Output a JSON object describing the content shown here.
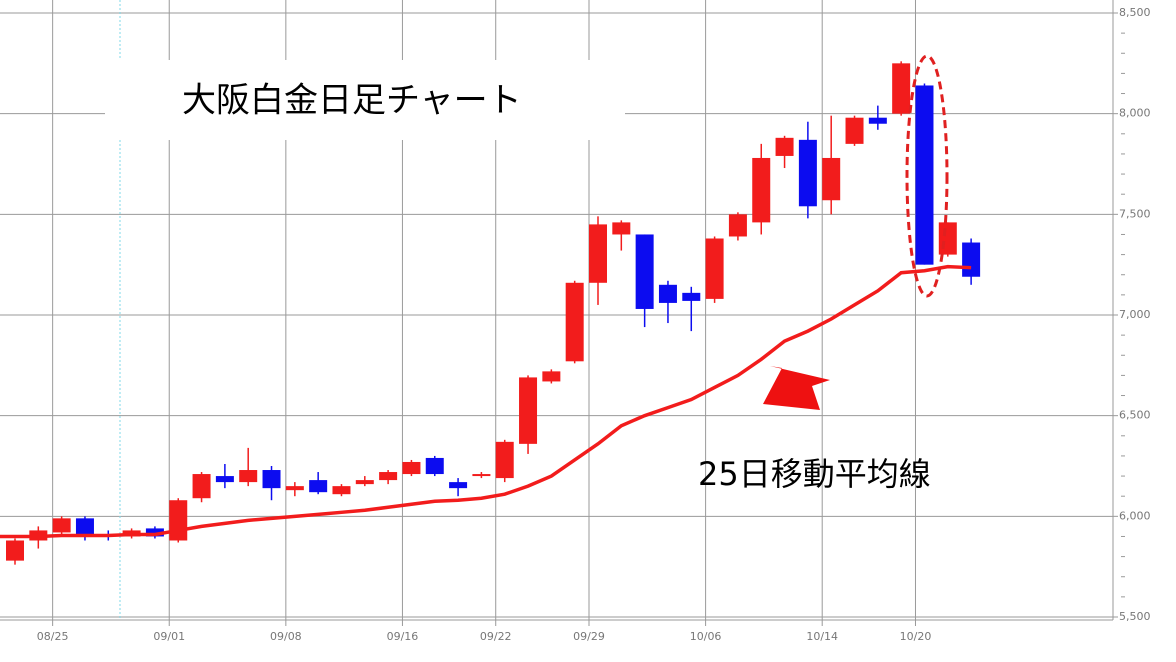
{
  "chart_data": {
    "type": "candlestick",
    "title": "大阪白金日足チャート",
    "categories": [
      null,
      null,
      "08/25",
      null,
      null,
      null,
      null,
      "09/01",
      null,
      null,
      null,
      null,
      "09/08",
      null,
      null,
      null,
      null,
      "09/16",
      null,
      null,
      null,
      "09/22",
      null,
      null,
      null,
      "09/29",
      null,
      null,
      null,
      null,
      "10/06",
      null,
      null,
      null,
      null,
      "10/14",
      null,
      null,
      null,
      "10/20",
      null,
      null
    ],
    "open": [
      5780,
      5880,
      5920,
      5990,
      5910,
      5900,
      5940,
      5880,
      6090,
      6200,
      6170,
      6230,
      6130,
      6180,
      6110,
      6160,
      6180,
      6210,
      6290,
      6170,
      6200,
      6190,
      6360,
      6670,
      6770,
      7160,
      7400,
      7400,
      7150,
      7110,
      7080,
      7390,
      7460,
      7790,
      7870,
      7570,
      7850,
      7980,
      8000,
      8140,
      7300,
      7360
    ],
    "high": [
      5890,
      5950,
      6000,
      6000,
      5930,
      5940,
      5950,
      6090,
      6220,
      6260,
      6340,
      6250,
      6170,
      6220,
      6160,
      6200,
      6230,
      6280,
      6300,
      6190,
      6220,
      6380,
      6700,
      6730,
      7170,
      7490,
      7470,
      7400,
      7170,
      7140,
      7390,
      7510,
      7850,
      7890,
      7960,
      7990,
      7990,
      8040,
      8260,
      8150,
      7460,
      7380
    ],
    "low": [
      5760,
      5840,
      5900,
      5880,
      5880,
      5890,
      5890,
      5870,
      6070,
      6140,
      6150,
      6080,
      6100,
      6110,
      6100,
      6150,
      6160,
      6200,
      6200,
      6100,
      6190,
      6170,
      6310,
      6660,
      6760,
      7050,
      7320,
      6940,
      6960,
      6920,
      7060,
      7370,
      7400,
      7730,
      7480,
      7500,
      7840,
      7920,
      7990,
      7250,
      7290,
      7150
    ],
    "close": [
      5880,
      5930,
      5990,
      5910,
      5900,
      5930,
      5900,
      6080,
      6210,
      6170,
      6230,
      6140,
      6150,
      6120,
      6150,
      6180,
      6220,
      6270,
      6210,
      6140,
      6210,
      6370,
      6690,
      6720,
      7160,
      7450,
      7460,
      7030,
      7060,
      7070,
      7380,
      7500,
      7780,
      7880,
      7540,
      7780,
      7980,
      7950,
      8250,
      7250,
      7460,
      7190
    ],
    "up_color": "#f21c1c",
    "down_color": "#0c0cf0",
    "series": [
      {
        "name": "25日移動平均線",
        "color": "#f21c1c",
        "values": [
          5900,
          5900,
          5905,
          5905,
          5905,
          5910,
          5910,
          5930,
          5950,
          5965,
          5980,
          5990,
          6000,
          6010,
          6020,
          6030,
          6045,
          6060,
          6075,
          6080,
          6090,
          6110,
          6150,
          6200,
          6280,
          6360,
          6450,
          6500,
          6540,
          6580,
          6640,
          6700,
          6780,
          6870,
          6920,
          6980,
          7050,
          7120,
          7210,
          7220,
          7240,
          7235
        ]
      }
    ],
    "ylim": [
      5500,
      8500
    ],
    "yticks": [
      {
        "value": 5500,
        "label": "5,500"
      },
      {
        "value": 6000,
        "label": "6,000"
      },
      {
        "value": 6500,
        "label": "6,500"
      },
      {
        "value": 7000,
        "label": "7,000"
      },
      {
        "value": 7500,
        "label": "7,500"
      },
      {
        "value": 8000,
        "label": "8,000"
      },
      {
        "value": 8500,
        "label": "8,500"
      }
    ],
    "grid": true
  }
}
